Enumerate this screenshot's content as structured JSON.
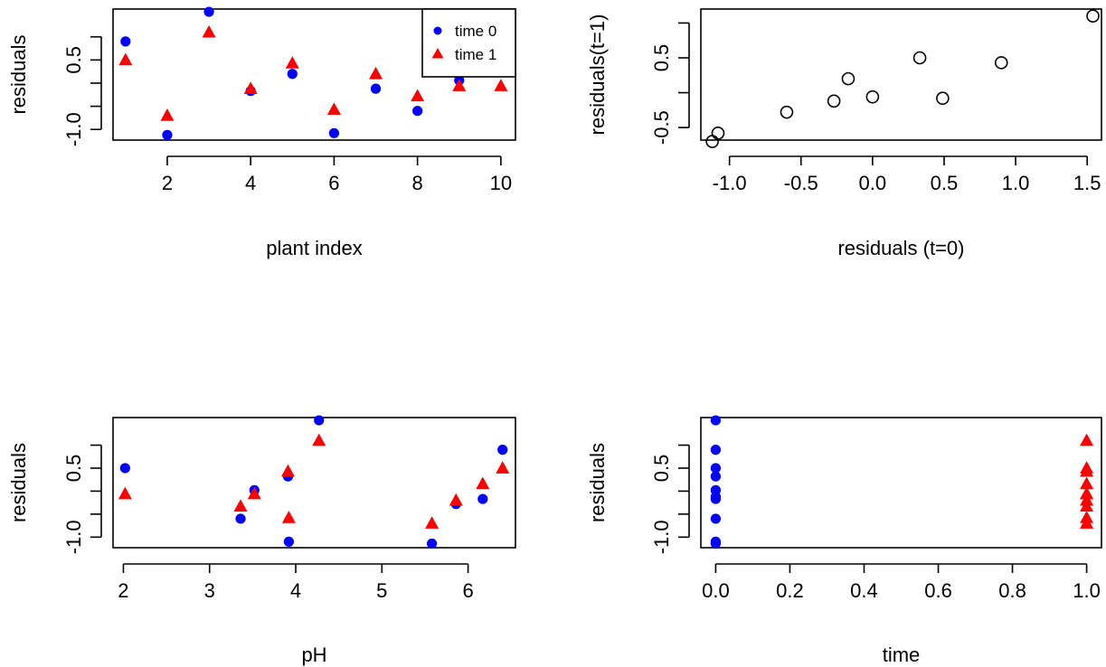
{
  "colors": {
    "time0": "#0000ff",
    "time1": "#ff0000",
    "ink": "#000000"
  },
  "chart_data": [
    {
      "type": "scatter",
      "title": "",
      "xlabel": "plant index",
      "ylabel": "residuals",
      "xlim": [
        0.7,
        10.35
      ],
      "ylim": [
        -1.23,
        1.6
      ],
      "x_ticks": [
        2,
        4,
        6,
        8,
        10
      ],
      "y_ticks": [
        -1.0,
        0.5
      ],
      "y_tick_labels": [
        "-1.0",
        "0.5"
      ],
      "y_minor_ticks": [
        -0.5,
        0.0,
        1.0
      ],
      "legend": {
        "position": "top-right",
        "entries": [
          "time 0",
          "time 1"
        ]
      },
      "series": [
        {
          "name": "time 0",
          "marker": "circle",
          "color": "#0000ff",
          "x": [
            1,
            2,
            3,
            4,
            5,
            6,
            7,
            8,
            9
          ],
          "y": [
            0.9,
            -1.12,
            1.54,
            -0.17,
            0.2,
            -1.08,
            -0.12,
            -0.6,
            0.06
          ]
        },
        {
          "name": "time 1",
          "marker": "triangle",
          "color": "#ff0000",
          "x": [
            1,
            2,
            3,
            4,
            5,
            6,
            7,
            8,
            9,
            10
          ],
          "y": [
            0.5,
            -0.7,
            1.1,
            -0.12,
            0.43,
            -0.57,
            0.2,
            -0.28,
            -0.06,
            -0.06
          ]
        }
      ]
    },
    {
      "type": "scatter",
      "title": "",
      "xlabel": "residuals (t=0)",
      "ylabel": "residuals(t=1)",
      "xlim": [
        -1.2,
        1.6
      ],
      "ylim": [
        -0.68,
        1.2
      ],
      "x_ticks": [
        -1.0,
        -0.5,
        0.0,
        0.5,
        1.0,
        1.5
      ],
      "x_tick_labels": [
        "-1.0",
        "-0.5",
        "0.0",
        "0.5",
        "1.0",
        "1.5"
      ],
      "y_ticks": [
        -0.5,
        0.5
      ],
      "y_tick_labels": [
        "-0.5",
        "0.5"
      ],
      "y_minor_ticks": [
        0.0,
        1.0
      ],
      "series": [
        {
          "marker": "open-circle",
          "color": "#000000",
          "x": [
            -1.12,
            -1.08,
            -0.6,
            -0.27,
            -0.17,
            0.0,
            0.33,
            0.49,
            0.9,
            1.54
          ],
          "y": [
            -0.7,
            -0.58,
            -0.28,
            -0.12,
            0.2,
            -0.06,
            0.5,
            -0.08,
            0.43,
            1.1
          ]
        }
      ]
    },
    {
      "type": "scatter",
      "title": "",
      "xlabel": "pH",
      "ylabel": "residuals",
      "xlim": [
        1.88,
        6.55
      ],
      "ylim": [
        -1.23,
        1.6
      ],
      "x_ticks": [
        2,
        3,
        4,
        5,
        6
      ],
      "y_ticks": [
        -1.0,
        0.5
      ],
      "y_tick_labels": [
        "-1.0",
        "0.5"
      ],
      "y_minor_ticks": [
        -0.5,
        0.0,
        1.0
      ],
      "series": [
        {
          "name": "time 0",
          "marker": "circle",
          "color": "#0000ff",
          "x": [
            2.02,
            3.36,
            3.52,
            3.91,
            3.92,
            4.27,
            5.58,
            5.86,
            6.17,
            6.4
          ],
          "y": [
            0.5,
            -0.6,
            0.02,
            0.32,
            -1.1,
            1.54,
            -1.14,
            -0.28,
            -0.17,
            0.9
          ]
        },
        {
          "name": "time 1",
          "marker": "triangle",
          "color": "#ff0000",
          "x": [
            2.02,
            3.36,
            3.52,
            3.91,
            3.92,
            4.27,
            5.58,
            5.86,
            6.17,
            6.4
          ],
          "y": [
            -0.06,
            -0.33,
            -0.06,
            0.43,
            -0.58,
            1.1,
            -0.7,
            -0.2,
            0.16,
            0.5
          ]
        }
      ]
    },
    {
      "type": "scatter",
      "title": "",
      "xlabel": "time",
      "ylabel": "residuals",
      "xlim": [
        -0.04,
        1.04
      ],
      "ylim": [
        -1.23,
        1.6
      ],
      "x_ticks": [
        0.0,
        0.2,
        0.4,
        0.6,
        0.8,
        1.0
      ],
      "x_tick_labels": [
        "0.0",
        "0.2",
        "0.4",
        "0.6",
        "0.8",
        "1.0"
      ],
      "y_ticks": [
        -1.0,
        0.5
      ],
      "y_tick_labels": [
        "-1.0",
        "0.5"
      ],
      "y_minor_ticks": [
        -0.5,
        0.0,
        1.0
      ],
      "series": [
        {
          "name": "time 0",
          "marker": "circle",
          "color": "#0000ff",
          "x": [
            0,
            0,
            0,
            0,
            0,
            0,
            0,
            0,
            0,
            0
          ],
          "y": [
            1.54,
            0.9,
            0.5,
            0.32,
            0.02,
            -0.12,
            -0.17,
            -0.6,
            -1.1,
            -1.14
          ]
        },
        {
          "name": "time 1",
          "marker": "triangle",
          "color": "#ff0000",
          "x": [
            1,
            1,
            1,
            1,
            1,
            1,
            1,
            1,
            1,
            1
          ],
          "y": [
            1.1,
            0.5,
            0.43,
            0.16,
            -0.06,
            -0.06,
            -0.2,
            -0.33,
            -0.58,
            -0.7
          ]
        }
      ]
    }
  ]
}
